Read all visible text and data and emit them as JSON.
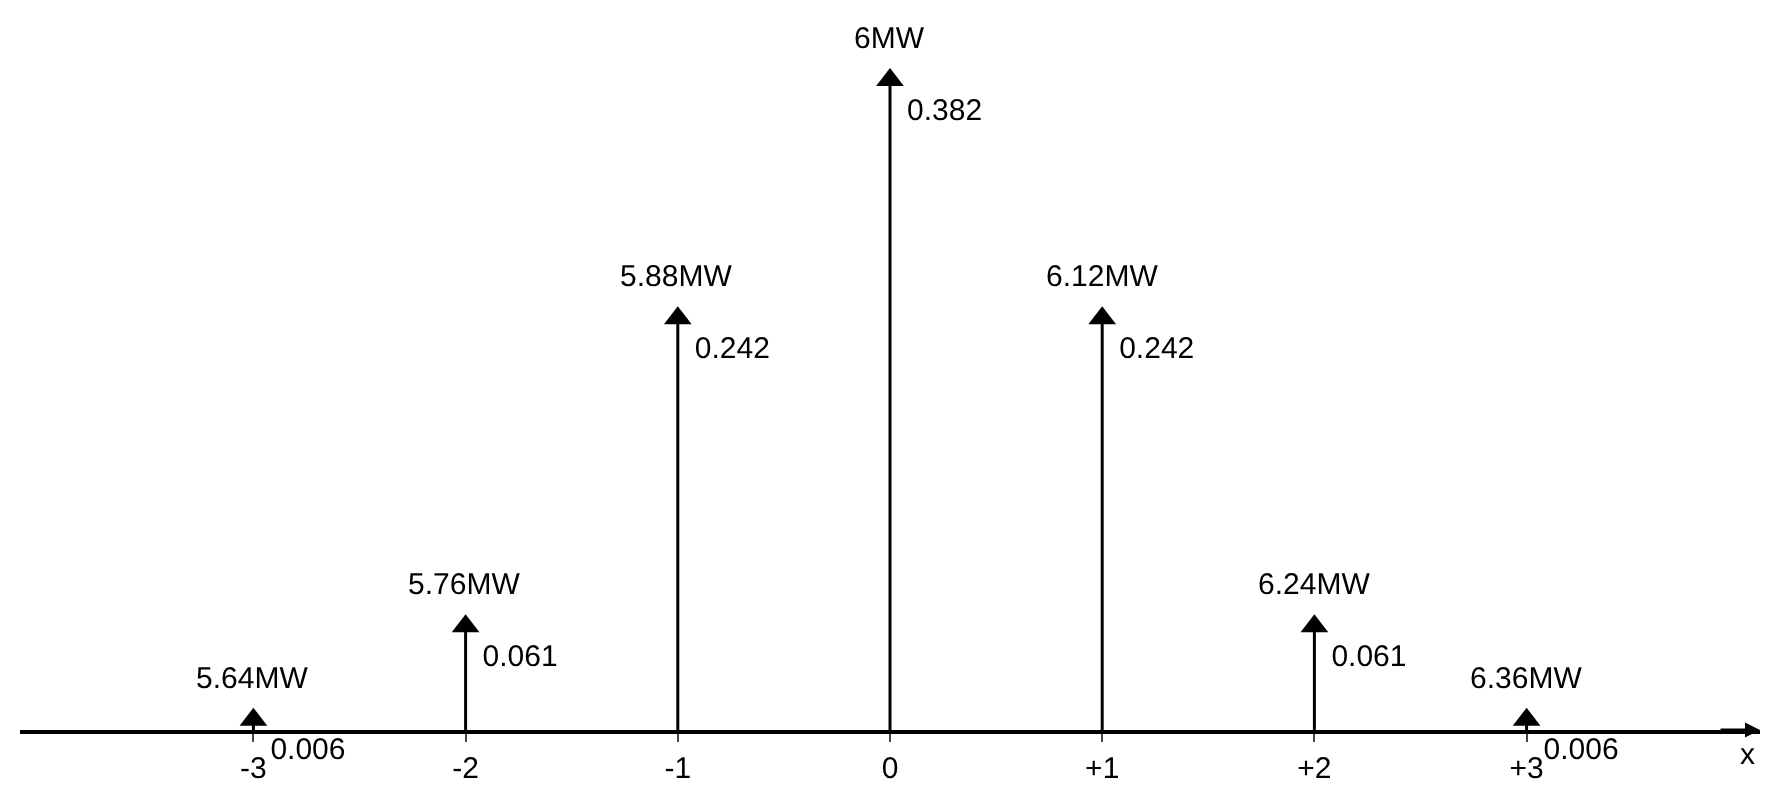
{
  "chart_data": {
    "type": "lollipop",
    "xlabel": "x",
    "categories": [
      "-3",
      "-2",
      "-1",
      "0",
      "+1",
      "+2",
      "+3"
    ],
    "values": [
      0.006,
      0.061,
      0.242,
      0.382,
      0.242,
      0.061,
      0.006
    ],
    "color": "#000000",
    "marker": "triangle",
    "data_labels": true,
    "annotations": [
      {
        "text": "5.64MW",
        "x": "-3",
        "y": 0.006
      },
      {
        "text": "5.76MW",
        "x": "-2",
        "y": 0.061
      },
      {
        "text": "5.88MW",
        "x": "-1",
        "y": 0.242
      },
      {
        "text": "6MW",
        "x": "0",
        "y": 0.382
      },
      {
        "text": "6.12MW",
        "x": "+1",
        "y": 0.242
      },
      {
        "text": "6.24MW",
        "x": "+2",
        "y": 0.061
      },
      {
        "text": "6.36MW",
        "x": "+3",
        "y": 0.006
      }
    ]
  }
}
